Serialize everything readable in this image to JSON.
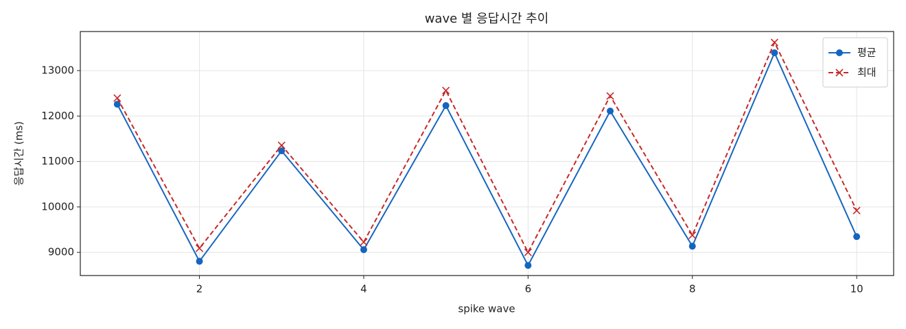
{
  "chart_data": {
    "type": "line",
    "title": "wave 별 응답시간 추이",
    "x_label": "spike wave",
    "y_label": "응답시간 (ms)",
    "x": [
      1,
      2,
      3,
      4,
      5,
      6,
      7,
      8,
      9,
      10
    ],
    "series": [
      {
        "name": "평균",
        "color": "#1565c0",
        "marker": "circle",
        "dash": "solid",
        "values": [
          12260,
          8804,
          11234,
          9060,
          12230,
          8713,
          12110,
          9136,
          13392,
          9347
        ]
      },
      {
        "name": "최대",
        "color": "#c62828",
        "marker": "x",
        "dash": "dashed",
        "values": [
          12396,
          9090,
          11355,
          9226,
          12562,
          9000,
          12442,
          9377,
          13620,
          9920
        ]
      }
    ],
    "xlim": [
      0.55,
      10.45
    ],
    "ylim": [
      8490,
      13860
    ],
    "xticks": [
      2,
      4,
      6,
      8,
      10
    ],
    "yticks": [
      9000,
      10000,
      11000,
      12000,
      13000
    ],
    "grid": true,
    "legend": "upper right"
  }
}
